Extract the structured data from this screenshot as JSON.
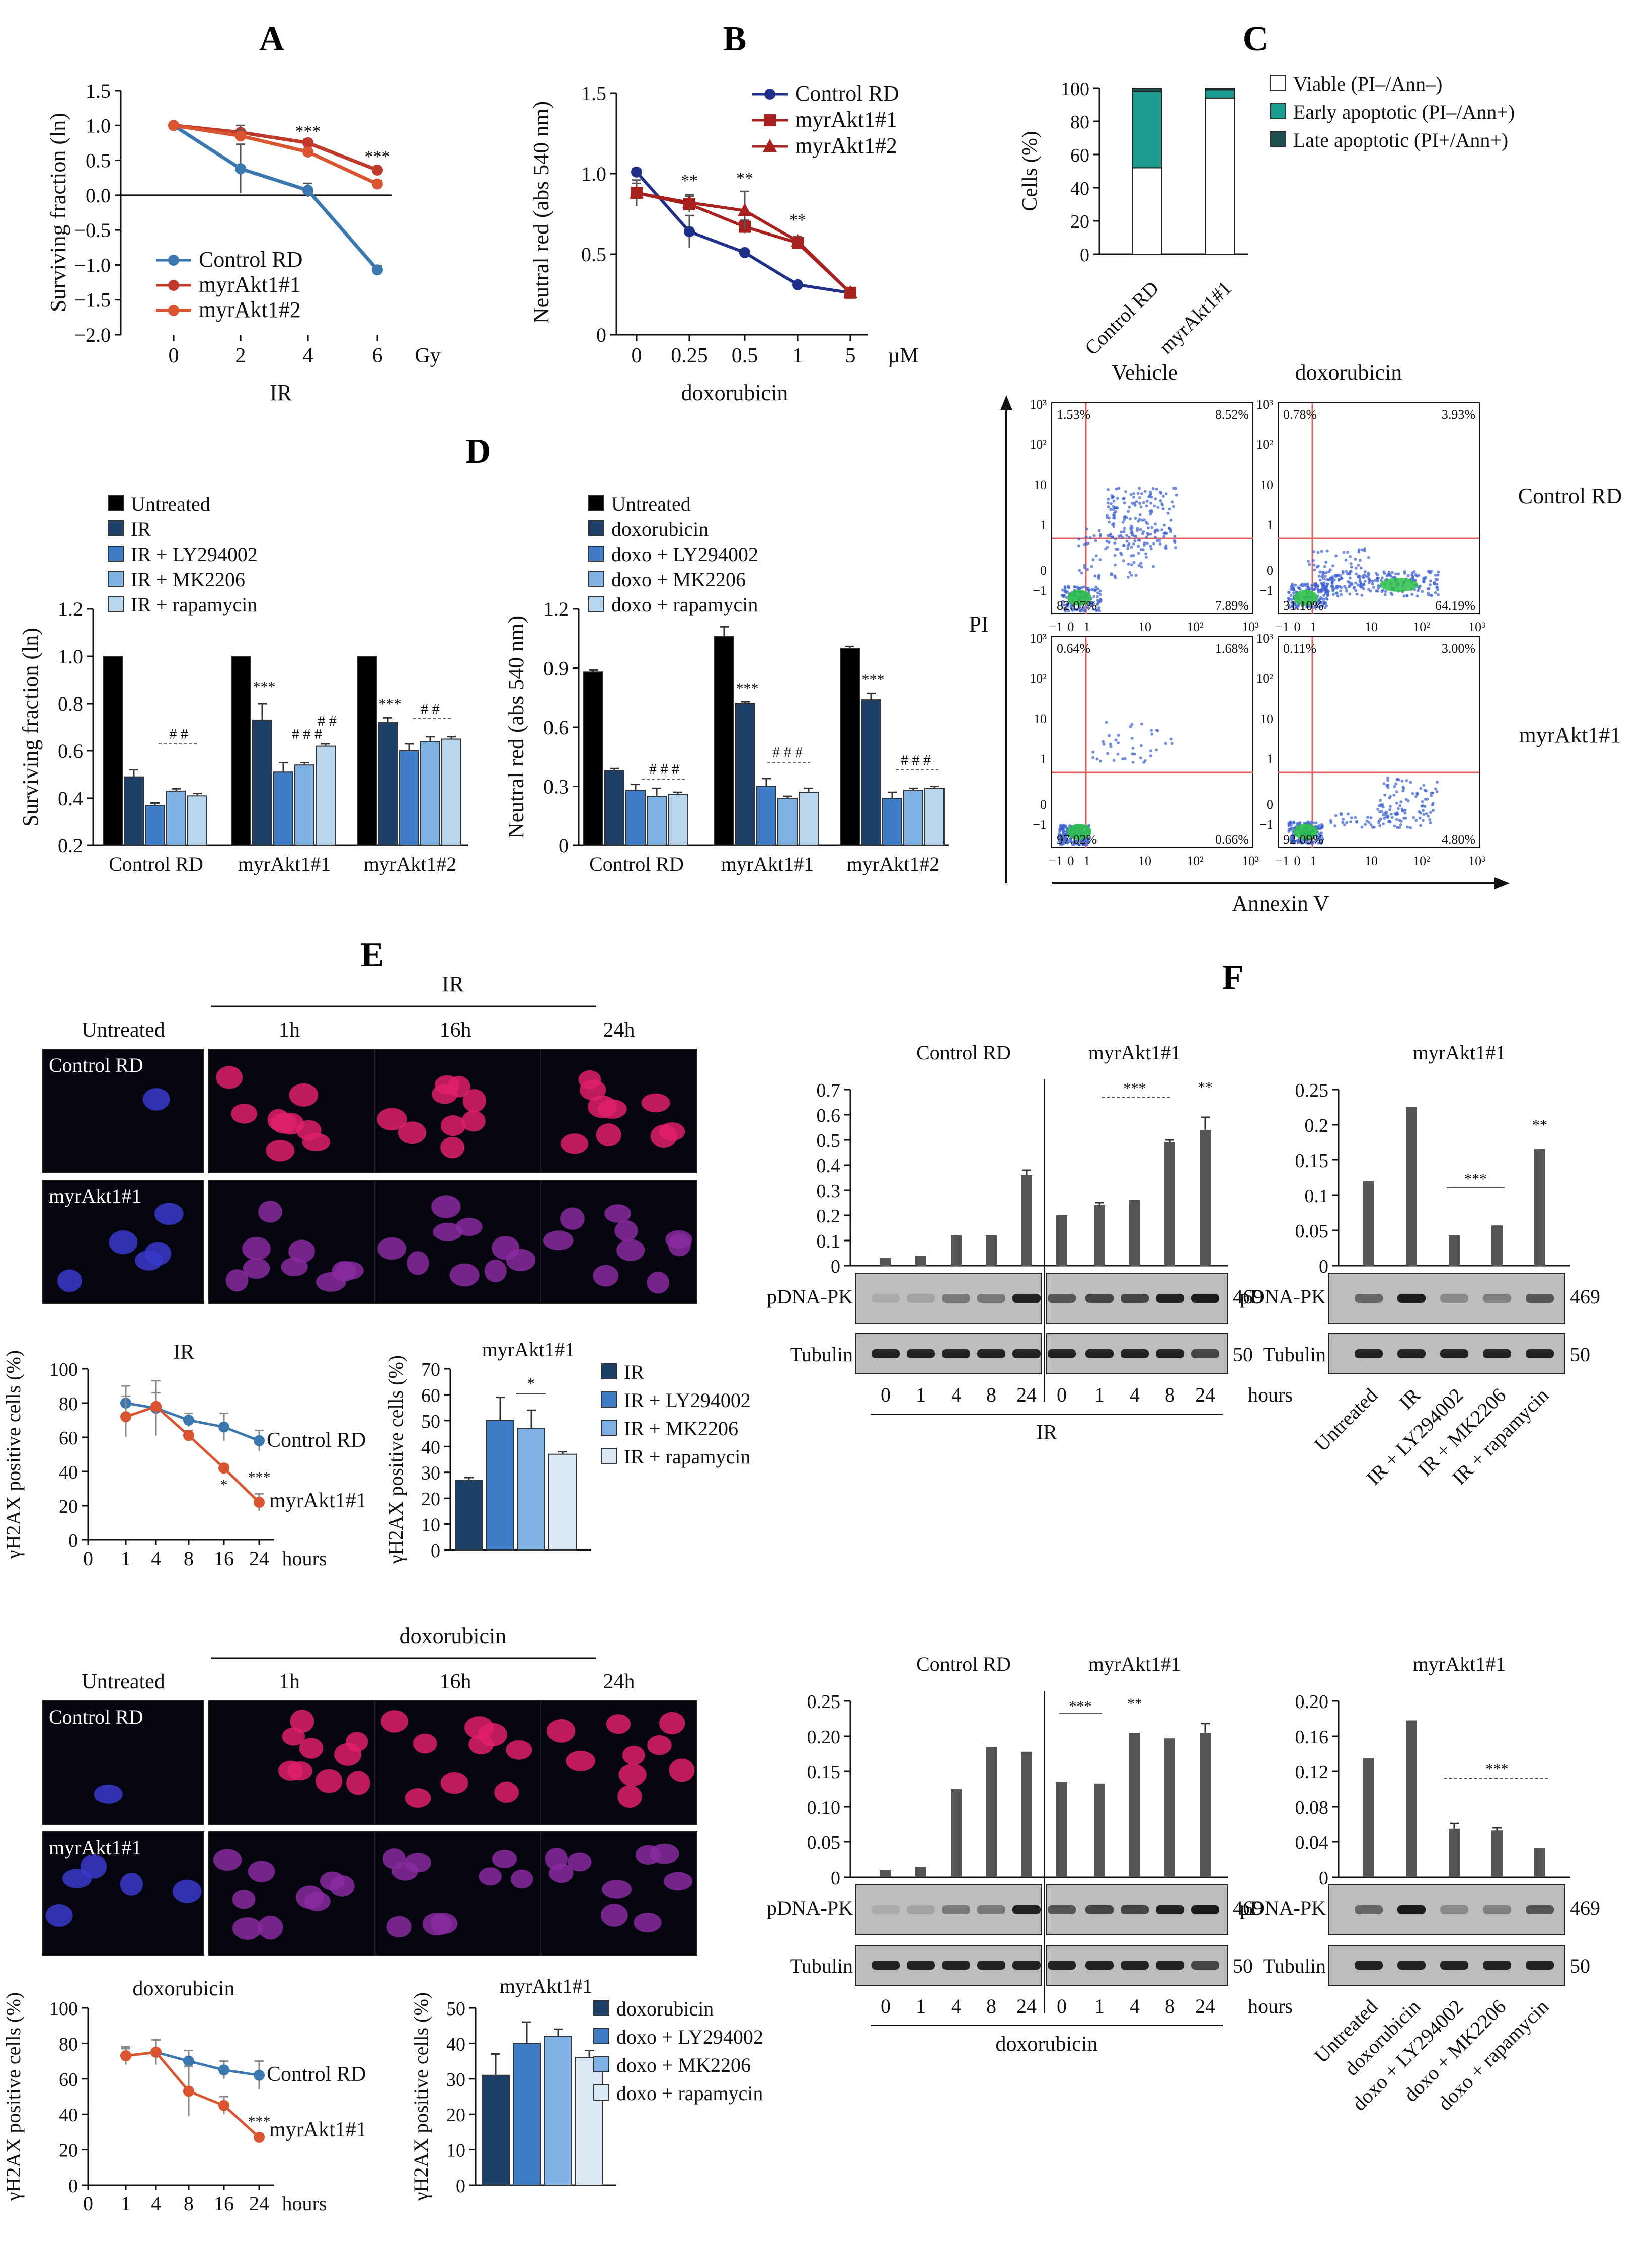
{
  "figure": {
    "panel_labels": [
      "A",
      "B",
      "C",
      "D",
      "E",
      "F"
    ]
  },
  "colors": {
    "control": "#3b78b0",
    "myr1": "#c0392b",
    "myr2": "#d9542f",
    "navy": "#1f2f8a",
    "dark_red": "#a8211e",
    "black": "#000000",
    "bar_dark": "#1e3f66",
    "bar_mid": "#3e7cc8",
    "bar_light": "#7fb2e3",
    "bar_lighter": "#b9d6ef",
    "teal": "#1b9a8e",
    "dark_teal": "#1f4f50",
    "flow_line": "#e06060",
    "wb_bar": "#555555"
  },
  "chart_data": [
    {
      "id": "A",
      "type": "line",
      "xlabel": "IR",
      "x_unit": "Gy",
      "ylabel": "Surviving fraction (ln)",
      "categories": [
        "0",
        "2",
        "4",
        "6"
      ],
      "ylim": [
        -2.0,
        1.5
      ],
      "yticks": [
        "1.5",
        "1.0",
        "0.5",
        "0.0",
        "−0.5",
        "−1.0",
        "−1.5",
        "−2.0"
      ],
      "legend": "bottom-left",
      "series": [
        {
          "name": "Control RD",
          "values": [
            1.0,
            0.38,
            0.07,
            -1.07
          ],
          "errors": [
            0.02,
            0.35,
            0.1,
            0.06
          ],
          "color": "#3b78b0"
        },
        {
          "name": "myrAkt1#1",
          "values": [
            1.0,
            0.9,
            0.75,
            0.36
          ],
          "errors": [
            0.02,
            0.1,
            0.05,
            0.04
          ],
          "color": "#c0392b"
        },
        {
          "name": "myrAkt1#2",
          "values": [
            1.0,
            0.85,
            0.62,
            0.16
          ],
          "errors": [
            0.02,
            0.08,
            0.05,
            0.05
          ],
          "color": "#d9542f"
        }
      ],
      "annotations": [
        "***",
        "***"
      ]
    },
    {
      "id": "B",
      "type": "line",
      "xlabel": "doxorubicin",
      "x_unit": "µM",
      "ylabel": "Neutral red (abs 540 nm)",
      "categories": [
        "0",
        "0.25",
        "0.5",
        "1",
        "5"
      ],
      "ylim": [
        0,
        1.5
      ],
      "yticks": [
        "1.5",
        "1.0",
        "0.5",
        "0"
      ],
      "legend": "top-right",
      "series": [
        {
          "name": "Control RD",
          "values": [
            1.01,
            0.64,
            0.51,
            0.31,
            0.26
          ],
          "errors": [
            0.02,
            0.1,
            0.02,
            0.02,
            0.01
          ],
          "color": "#1f2f8a"
        },
        {
          "name": "myrAkt1#1",
          "values": [
            0.88,
            0.81,
            0.67,
            0.57,
            0.26
          ],
          "errors": [
            0.06,
            0.05,
            0.04,
            0.03,
            0.01
          ],
          "color": "#a8211e"
        },
        {
          "name": "myrAkt1#2",
          "values": [
            0.88,
            0.82,
            0.77,
            0.58,
            0.26
          ],
          "errors": [
            0.08,
            0.05,
            0.12,
            0.03,
            0.01
          ],
          "color": "#a8211e"
        }
      ],
      "annotations": [
        "**",
        "**",
        "**"
      ]
    },
    {
      "id": "C",
      "type": "bar",
      "ylabel": "Cells (%)",
      "categories": [
        "Control RD",
        "myrAkt1#1"
      ],
      "ylim": [
        0,
        100
      ],
      "yticks": [
        "100",
        "80",
        "60",
        "40",
        "20",
        "0"
      ],
      "legend": "right",
      "series": [
        {
          "name": "Viable (PI–/Ann–)",
          "values": [
            52,
            94
          ],
          "color": "#ffffff"
        },
        {
          "name": "Early apoptotic (PI–/Ann+)",
          "values": [
            46,
            5
          ],
          "color": "#1b9a8e"
        },
        {
          "name": "Late apoptotic (PI+/Ann+)",
          "values": [
            2,
            1
          ],
          "color": "#1f4f50"
        }
      ]
    },
    {
      "id": "C-flow",
      "type": "scatter",
      "xlabel": "Annexin V",
      "ylabel": "PI",
      "columns": [
        "Vehicle",
        "doxorubicin"
      ],
      "rows": [
        "Control RD",
        "myrAkt1#1"
      ],
      "quadrants": [
        {
          "row": "Control RD",
          "col": "Vehicle",
          "ul": "1.53%",
          "ur": "8.52%",
          "ll": "82.07%",
          "lr": "7.89%"
        },
        {
          "row": "Control RD",
          "col": "doxorubicin",
          "ul": "0.78%",
          "ur": "3.93%",
          "ll": "31.10%",
          "lr": "64.19%"
        },
        {
          "row": "myrAkt1#1",
          "col": "Vehicle",
          "ul": "0.64%",
          "ur": "1.68%",
          "ll": "97.02%",
          "lr": "0.66%"
        },
        {
          "row": "myrAkt1#1",
          "col": "doxorubicin",
          "ul": "0.11%",
          "ur": "3.00%",
          "ll": "92.09%",
          "lr": "4.80%"
        }
      ]
    },
    {
      "id": "D-IR",
      "type": "bar",
      "ylabel": "Surviving fraction (ln)",
      "categories": [
        "Control RD",
        "myrAkt1#1",
        "myrAkt1#2"
      ],
      "ylim": [
        0.2,
        1.2
      ],
      "yticks": [
        "1.2",
        "1.0",
        "0.8",
        "0.6",
        "0.4",
        "0.2"
      ],
      "legend": "top-left",
      "series": [
        {
          "name": "Untreated",
          "values": [
            1.0,
            1.0,
            1.0
          ],
          "errors": [
            0,
            0,
            0
          ],
          "color": "#000000"
        },
        {
          "name": "IR",
          "values": [
            0.49,
            0.73,
            0.72
          ],
          "errors": [
            0.03,
            0.07,
            0.02
          ],
          "color": "#1e3f66"
        },
        {
          "name": "IR + LY294002",
          "values": [
            0.37,
            0.51,
            0.6
          ],
          "errors": [
            0.01,
            0.04,
            0.03
          ],
          "color": "#3e7cc8"
        },
        {
          "name": "IR + MK2206",
          "values": [
            0.43,
            0.54,
            0.64
          ],
          "errors": [
            0.01,
            0.01,
            0.02
          ],
          "color": "#7fb2e3"
        },
        {
          "name": "IR + rapamycin",
          "values": [
            0.41,
            0.62,
            0.65
          ],
          "errors": [
            0.01,
            0.01,
            0.01
          ],
          "color": "#b9d6ef"
        }
      ],
      "annotations": [
        "# #",
        "***",
        "# # #",
        "# #",
        "***",
        "# #"
      ]
    },
    {
      "id": "D-doxo",
      "type": "bar",
      "ylabel": "Neutral red (abs 540 nm)",
      "categories": [
        "Control RD",
        "myrAkt1#1",
        "myrAkt1#2"
      ],
      "ylim": [
        0,
        1.2
      ],
      "yticks": [
        "1.2",
        "0.9",
        "0.6",
        "0.3",
        "0"
      ],
      "legend": "top-left",
      "series": [
        {
          "name": "Untreated",
          "values": [
            0.88,
            1.06,
            1.0
          ],
          "errors": [
            0.01,
            0.05,
            0.01
          ],
          "color": "#000000"
        },
        {
          "name": "doxorubicin",
          "values": [
            0.38,
            0.72,
            0.74
          ],
          "errors": [
            0.01,
            0.01,
            0.03
          ],
          "color": "#1e3f66"
        },
        {
          "name": "doxo + LY294002",
          "values": [
            0.28,
            0.3,
            0.24
          ],
          "errors": [
            0.03,
            0.04,
            0.03
          ],
          "color": "#3e7cc8"
        },
        {
          "name": "doxo + MK2206",
          "values": [
            0.25,
            0.24,
            0.28
          ],
          "errors": [
            0.04,
            0.01,
            0.01
          ],
          "color": "#7fb2e3"
        },
        {
          "name": "doxo + rapamycin",
          "values": [
            0.26,
            0.27,
            0.29
          ],
          "errors": [
            0.01,
            0.02,
            0.01
          ],
          "color": "#b9d6ef"
        }
      ],
      "annotations": [
        "# # #",
        "***",
        "# # #",
        "***",
        "# # #"
      ]
    },
    {
      "id": "E-IR-line",
      "type": "line",
      "title": "IR",
      "ylabel": "γH2AX positive cells (%)",
      "categories": [
        "0",
        "1",
        "4",
        "8",
        "16",
        "24"
      ],
      "x_unit": "hours",
      "ylim": [
        0,
        100
      ],
      "yticks": [
        "100",
        "80",
        "60",
        "40",
        "20",
        "0"
      ],
      "series": [
        {
          "name": "Control RD",
          "values": [
            null,
            80,
            77,
            70,
            66,
            58
          ],
          "errors": [
            0,
            10,
            16,
            4,
            8,
            6
          ],
          "color": "#3b78b0"
        },
        {
          "name": "myrAkt1#1",
          "values": [
            null,
            72,
            78,
            61,
            42,
            22
          ],
          "errors": [
            0,
            12,
            8,
            3,
            2,
            5
          ],
          "color": "#d9542f"
        }
      ],
      "annotations": [
        "*",
        "***"
      ]
    },
    {
      "id": "E-IR-bar",
      "type": "bar",
      "title": "myrAkt1#1",
      "ylabel": "γH2AX positive cells (%)",
      "categories": [
        "IR",
        "IR + LY294002",
        "IR + MK2206",
        "IR + rapamycin"
      ],
      "ylim": [
        0,
        70
      ],
      "yticks": [
        "70",
        "60",
        "50",
        "40",
        "30",
        "20",
        "10",
        "0"
      ],
      "values": [
        27,
        50,
        47,
        37
      ],
      "errors": [
        1,
        9,
        7,
        1
      ],
      "colors": [
        "#1e3f66",
        "#3e7cc8",
        "#7fb2e3",
        "#dbe8f5"
      ],
      "annotations": [
        "*"
      ]
    },
    {
      "id": "E-doxo-line",
      "type": "line",
      "title": "doxorubicin",
      "ylabel": "γH2AX positive cells (%)",
      "categories": [
        "0",
        "1",
        "4",
        "8",
        "16",
        "24"
      ],
      "x_unit": "hours",
      "ylim": [
        0,
        100
      ],
      "yticks": [
        "100",
        "80",
        "60",
        "40",
        "20",
        "0"
      ],
      "series": [
        {
          "name": "Control RD",
          "values": [
            null,
            73,
            75,
            70,
            65,
            62
          ],
          "errors": [
            0,
            5,
            7,
            6,
            5,
            8
          ],
          "color": "#3b78b0"
        },
        {
          "name": "myrAkt1#1",
          "values": [
            null,
            73,
            75,
            53,
            45,
            27
          ],
          "errors": [
            0,
            4,
            7,
            14,
            5,
            2
          ],
          "color": "#d9542f"
        }
      ],
      "annotations": [
        "***"
      ]
    },
    {
      "id": "E-doxo-bar",
      "type": "bar",
      "title": "myrAkt1#1",
      "ylabel": "γH2AX positive cells (%)",
      "categories": [
        "doxorubicin",
        "doxo + LY294002",
        "doxo + MK2206",
        "doxo + rapamycin"
      ],
      "ylim": [
        0,
        50
      ],
      "yticks": [
        "50",
        "40",
        "30",
        "20",
        "10",
        "0"
      ],
      "values": [
        31,
        40,
        42,
        36
      ],
      "errors": [
        6,
        6,
        2,
        2
      ],
      "colors": [
        "#1e3f66",
        "#3e7cc8",
        "#7fb2e3",
        "#dbe8f5"
      ]
    },
    {
      "id": "F-IR-time",
      "type": "bar",
      "groups": [
        "Control RD",
        "myrAkt1#1"
      ],
      "categories": [
        "0",
        "1",
        "4",
        "8",
        "24"
      ],
      "x_unit": "hours",
      "xlabel": "IR",
      "ylim": [
        0,
        0.7
      ],
      "yticks": [
        "0.7",
        "0.6",
        "0.5",
        "0.4",
        "0.3",
        "0.2",
        "0.1",
        "0"
      ],
      "series": [
        {
          "name": "Control RD",
          "values": [
            0.03,
            0.04,
            0.12,
            0.12,
            0.36
          ],
          "errors": [
            0,
            0,
            0,
            0,
            0.02
          ]
        },
        {
          "name": "myrAkt1#1",
          "values": [
            0.2,
            0.24,
            0.26,
            0.49,
            0.54
          ],
          "errors": [
            0,
            0.01,
            0,
            0.01,
            0.05
          ]
        }
      ],
      "blot_rows": [
        "pDNA-PK",
        "Tubulin"
      ],
      "blot_sizes": [
        "469",
        "50"
      ],
      "annotations": [
        "***",
        "**"
      ]
    },
    {
      "id": "F-IR-inhib",
      "type": "bar",
      "title": "myrAkt1#1",
      "categories": [
        "Untreated",
        "IR",
        "IR + LY294002",
        "IR + MK2206",
        "IR + rapamycin"
      ],
      "ylim": [
        0,
        0.25
      ],
      "yticks": [
        "0.25",
        "0.2",
        "0.15",
        "0.1",
        "0.05",
        "0"
      ],
      "values": [
        0.12,
        0.225,
        0.043,
        0.057,
        0.165
      ],
      "blot_rows": [
        "pDNA-PK",
        "Tubulin"
      ],
      "blot_sizes": [
        "469",
        "50"
      ],
      "annotations": [
        "***",
        "**"
      ]
    },
    {
      "id": "F-doxo-time",
      "type": "bar",
      "groups": [
        "Control RD",
        "myrAkt1#1"
      ],
      "categories": [
        "0",
        "1",
        "4",
        "8",
        "24"
      ],
      "x_unit": "hours",
      "xlabel": "doxorubicin",
      "ylim": [
        0,
        0.25
      ],
      "yticks": [
        "0.25",
        "0.20",
        "0.15",
        "0.10",
        "0.05",
        "0"
      ],
      "series": [
        {
          "name": "Control RD",
          "values": [
            0.01,
            0.015,
            0.125,
            0.185,
            0.178
          ],
          "errors": [
            0,
            0,
            0,
            0,
            0
          ]
        },
        {
          "name": "myrAkt1#1",
          "values": [
            0.135,
            0.133,
            0.205,
            0.197,
            0.205
          ],
          "errors": [
            0,
            0,
            0,
            0,
            0.013
          ]
        }
      ],
      "blot_rows": [
        "pDNA-PK",
        "Tubulin"
      ],
      "blot_sizes": [
        "469",
        "50"
      ],
      "annotations": [
        "***",
        "**"
      ]
    },
    {
      "id": "F-doxo-inhib",
      "type": "bar",
      "title": "myrAkt1#1",
      "categories": [
        "Untreated",
        "doxorubicin",
        "doxo + LY294002",
        "doxo + MK2206",
        "doxo + rapamycin"
      ],
      "ylim": [
        0,
        0.2
      ],
      "yticks": [
        "0.20",
        "0.16",
        "0.12",
        "0.08",
        "0.04",
        "0"
      ],
      "values": [
        0.135,
        0.178,
        0.055,
        0.053,
        0.033
      ],
      "errors": [
        0,
        0,
        0.006,
        0.003,
        0
      ],
      "blot_rows": [
        "pDNA-PK",
        "Tubulin"
      ],
      "blot_sizes": [
        "469",
        "50"
      ],
      "annotations": [
        "***"
      ]
    }
  ],
  "panel_E": {
    "ir_row_header": "IR",
    "doxo_row_header": "doxorubicin",
    "columns": [
      "Untreated",
      "1h",
      "16h",
      "24h"
    ],
    "row_labels": [
      "Control RD",
      "myrAkt1#1"
    ],
    "x_unit": "hours",
    "line_labels": [
      "Control RD",
      "myrAkt1#1"
    ]
  }
}
